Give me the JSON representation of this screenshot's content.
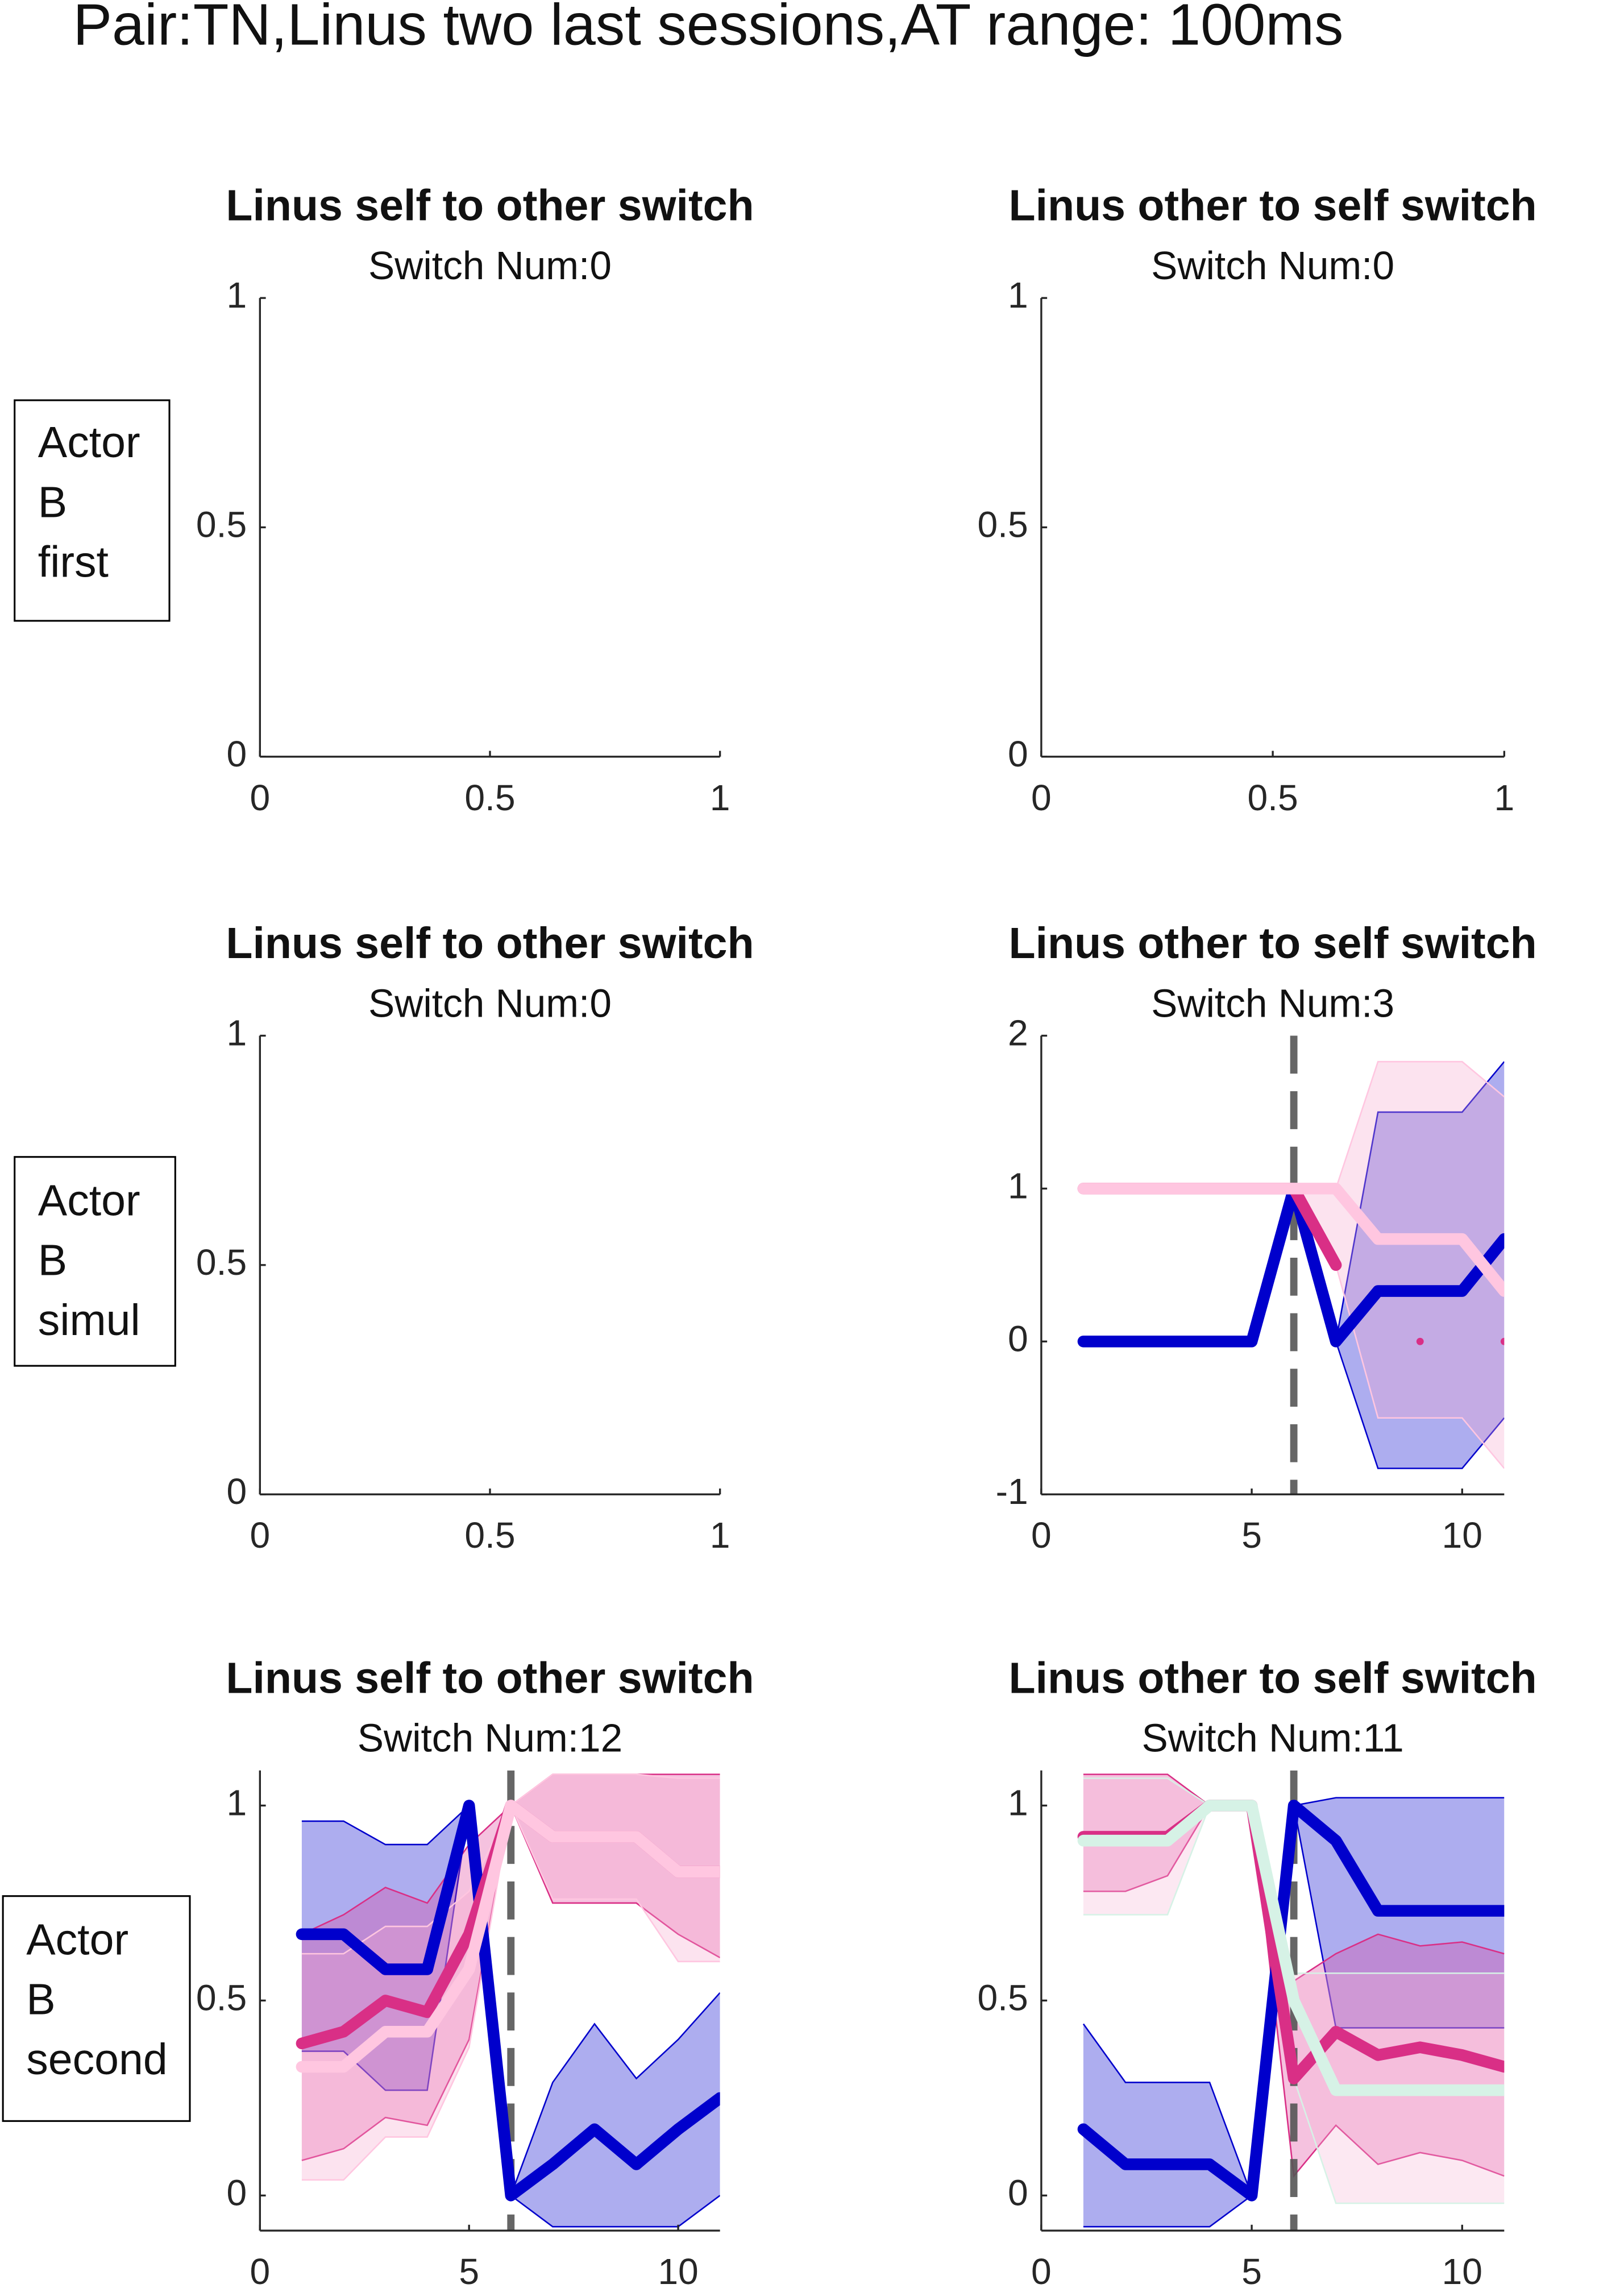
{
  "title": "Pair:TN,Linus two last sessions,AT range: 100ms",
  "row_labels": [
    [
      "Actor",
      "B",
      "first"
    ],
    [
      "Actor",
      "B",
      "simul"
    ],
    [
      "Actor",
      "B",
      "second"
    ]
  ],
  "chart_data": [
    {
      "type": "line",
      "title": "Linus self to other switch",
      "subtitle": "Switch Num:0",
      "xlim": [
        0,
        1
      ],
      "xticks": [
        0,
        0.5,
        1
      ],
      "ylim": [
        0,
        1
      ],
      "yticks": [
        0,
        0.5,
        1
      ],
      "series": []
    },
    {
      "type": "line",
      "title": "Linus other to self switch",
      "subtitle": "Switch Num:0",
      "xlim": [
        0,
        1
      ],
      "xticks": [
        0,
        0.5,
        1
      ],
      "ylim": [
        0,
        1
      ],
      "yticks": [
        0,
        0.5,
        1
      ],
      "series": []
    },
    {
      "type": "line",
      "title": "Linus self to other switch",
      "subtitle": "Switch Num:0",
      "xlim": [
        0,
        1
      ],
      "xticks": [
        0,
        0.5,
        1
      ],
      "ylim": [
        0,
        1
      ],
      "yticks": [
        0,
        0.5,
        1
      ],
      "series": []
    },
    {
      "type": "line",
      "title": "Linus other to self switch",
      "subtitle": "Switch Num:3",
      "xlim": [
        0,
        11
      ],
      "xticks": [
        0,
        5,
        10
      ],
      "ylim": [
        -1,
        2
      ],
      "yticks": [
        -1,
        0,
        1,
        2
      ],
      "vline": 6,
      "x": [
        1,
        2,
        3,
        4,
        5,
        6,
        7,
        8,
        9,
        10,
        11
      ],
      "series": [
        {
          "color": "#0000cc",
          "band_color": "#0000cc",
          "values": [
            0,
            0,
            0,
            0,
            0,
            1,
            0,
            0.33,
            0.33,
            0.33,
            0.67
          ],
          "lower": [
            0,
            0,
            0,
            0,
            0,
            1,
            0,
            -0.83,
            -0.83,
            -0.83,
            -0.5
          ],
          "upper": [
            0,
            0,
            0,
            0,
            0,
            1,
            0,
            1.5,
            1.5,
            1.5,
            1.83
          ]
        },
        {
          "color": "#d92f86",
          "values": [
            1,
            1,
            1,
            1,
            1,
            1,
            0.5,
            null,
            0,
            null,
            0
          ]
        },
        {
          "color": "#ffc6e0",
          "band_color": "#f7a8cc",
          "values": [
            1,
            1,
            1,
            1,
            1,
            1,
            1,
            0.67,
            0.67,
            0.67,
            0.33
          ],
          "lower": [
            1,
            1,
            1,
            1,
            1,
            1,
            0.5,
            -0.5,
            -0.5,
            -0.5,
            -0.83
          ],
          "upper": [
            1,
            1,
            1,
            1,
            1,
            1,
            1,
            1.83,
            1.83,
            1.83,
            1.6
          ]
        }
      ]
    },
    {
      "type": "line",
      "title": "Linus self to other switch",
      "subtitle": "Switch Num:12",
      "xlim": [
        0,
        11
      ],
      "xticks": [
        0,
        5,
        10
      ],
      "ylim": [
        -0.09,
        1.09
      ],
      "yticks": [
        0,
        0.5,
        1
      ],
      "vline": 6,
      "x": [
        1,
        2,
        3,
        4,
        5,
        6,
        7,
        8,
        9,
        10,
        11
      ],
      "series": [
        {
          "color": "#0000cc",
          "band_color": "#0000cc",
          "values": [
            0.67,
            0.67,
            0.58,
            0.58,
            1,
            0,
            0.08,
            0.17,
            0.08,
            0.17,
            0.25
          ],
          "lower": [
            0.37,
            0.37,
            0.27,
            0.27,
            1,
            0,
            -0.08,
            -0.08,
            -0.08,
            -0.08,
            0
          ],
          "upper": [
            0.96,
            0.96,
            0.9,
            0.9,
            1,
            0,
            0.29,
            0.44,
            0.3,
            0.4,
            0.52
          ]
        },
        {
          "color": "#d92f86",
          "band_color": "#e0409a",
          "values": [
            0.39,
            0.42,
            0.5,
            0.47,
            0.67,
            1,
            0.92,
            0.92,
            0.92,
            0.83,
            0.83
          ],
          "lower": [
            0.09,
            0.12,
            0.2,
            0.18,
            0.4,
            1,
            0.75,
            0.75,
            0.75,
            0.67,
            0.61
          ],
          "upper": [
            0.67,
            0.72,
            0.79,
            0.75,
            0.9,
            1,
            1.08,
            1.08,
            1.08,
            1.08,
            1.08
          ]
        },
        {
          "color": "#ffc6e0",
          "band_color": "#f7a8cc",
          "values": [
            0.33,
            0.33,
            0.42,
            0.42,
            0.58,
            1,
            0.92,
            0.92,
            0.92,
            0.83,
            0.83
          ],
          "lower": [
            0.04,
            0.04,
            0.15,
            0.15,
            0.38,
            1,
            0.76,
            0.76,
            0.76,
            0.6,
            0.6
          ],
          "upper": [
            0.62,
            0.62,
            0.69,
            0.69,
            0.78,
            1,
            1.08,
            1.08,
            1.08,
            1.07,
            1.07
          ]
        }
      ]
    },
    {
      "type": "line",
      "title": "Linus other to self switch",
      "subtitle": "Switch Num:11",
      "xlim": [
        0,
        11
      ],
      "xticks": [
        0,
        5,
        10
      ],
      "ylim": [
        -0.09,
        1.09
      ],
      "yticks": [
        0,
        0.5,
        1
      ],
      "vline": 6,
      "x": [
        1,
        2,
        3,
        4,
        5,
        6,
        7,
        8,
        9,
        10,
        11
      ],
      "series": [
        {
          "color": "#0000cc",
          "band_color": "#0000cc",
          "values": [
            0.17,
            0.08,
            0.08,
            0.08,
            0,
            1,
            0.91,
            0.73,
            0.73,
            0.73,
            0.73
          ],
          "lower": [
            -0.08,
            -0.08,
            -0.08,
            -0.08,
            0,
            1,
            0.43,
            0.43,
            0.43,
            0.43,
            0.43
          ],
          "upper": [
            0.44,
            0.29,
            0.29,
            0.29,
            0,
            1,
            1.02,
            1.02,
            1.02,
            1.02,
            1.02
          ]
        },
        {
          "color": "#d92f86",
          "band_color": "#e0409a",
          "values": [
            0.92,
            0.92,
            0.92,
            1,
            1,
            0.3,
            0.42,
            0.36,
            0.38,
            0.36,
            0.33
          ],
          "lower": [
            0.78,
            0.78,
            0.82,
            1,
            1,
            0.05,
            0.18,
            0.08,
            0.11,
            0.09,
            0.05
          ],
          "upper": [
            1.08,
            1.08,
            1.08,
            1,
            1,
            0.55,
            0.62,
            0.67,
            0.64,
            0.65,
            0.62
          ]
        },
        {
          "color": "#d6f2e6",
          "band_color": "#f7b8d6",
          "values": [
            0.91,
            0.91,
            0.91,
            1,
            1,
            0.5,
            0.27,
            0.27,
            0.27,
            0.27,
            0.27
          ],
          "lower": [
            0.72,
            0.72,
            0.72,
            1,
            1,
            0.3,
            -0.02,
            -0.02,
            -0.02,
            -0.02,
            -0.02
          ],
          "upper": [
            1.07,
            1.07,
            1.07,
            1,
            1,
            0.57,
            0.57,
            0.57,
            0.57,
            0.57,
            0.57
          ]
        }
      ]
    }
  ]
}
